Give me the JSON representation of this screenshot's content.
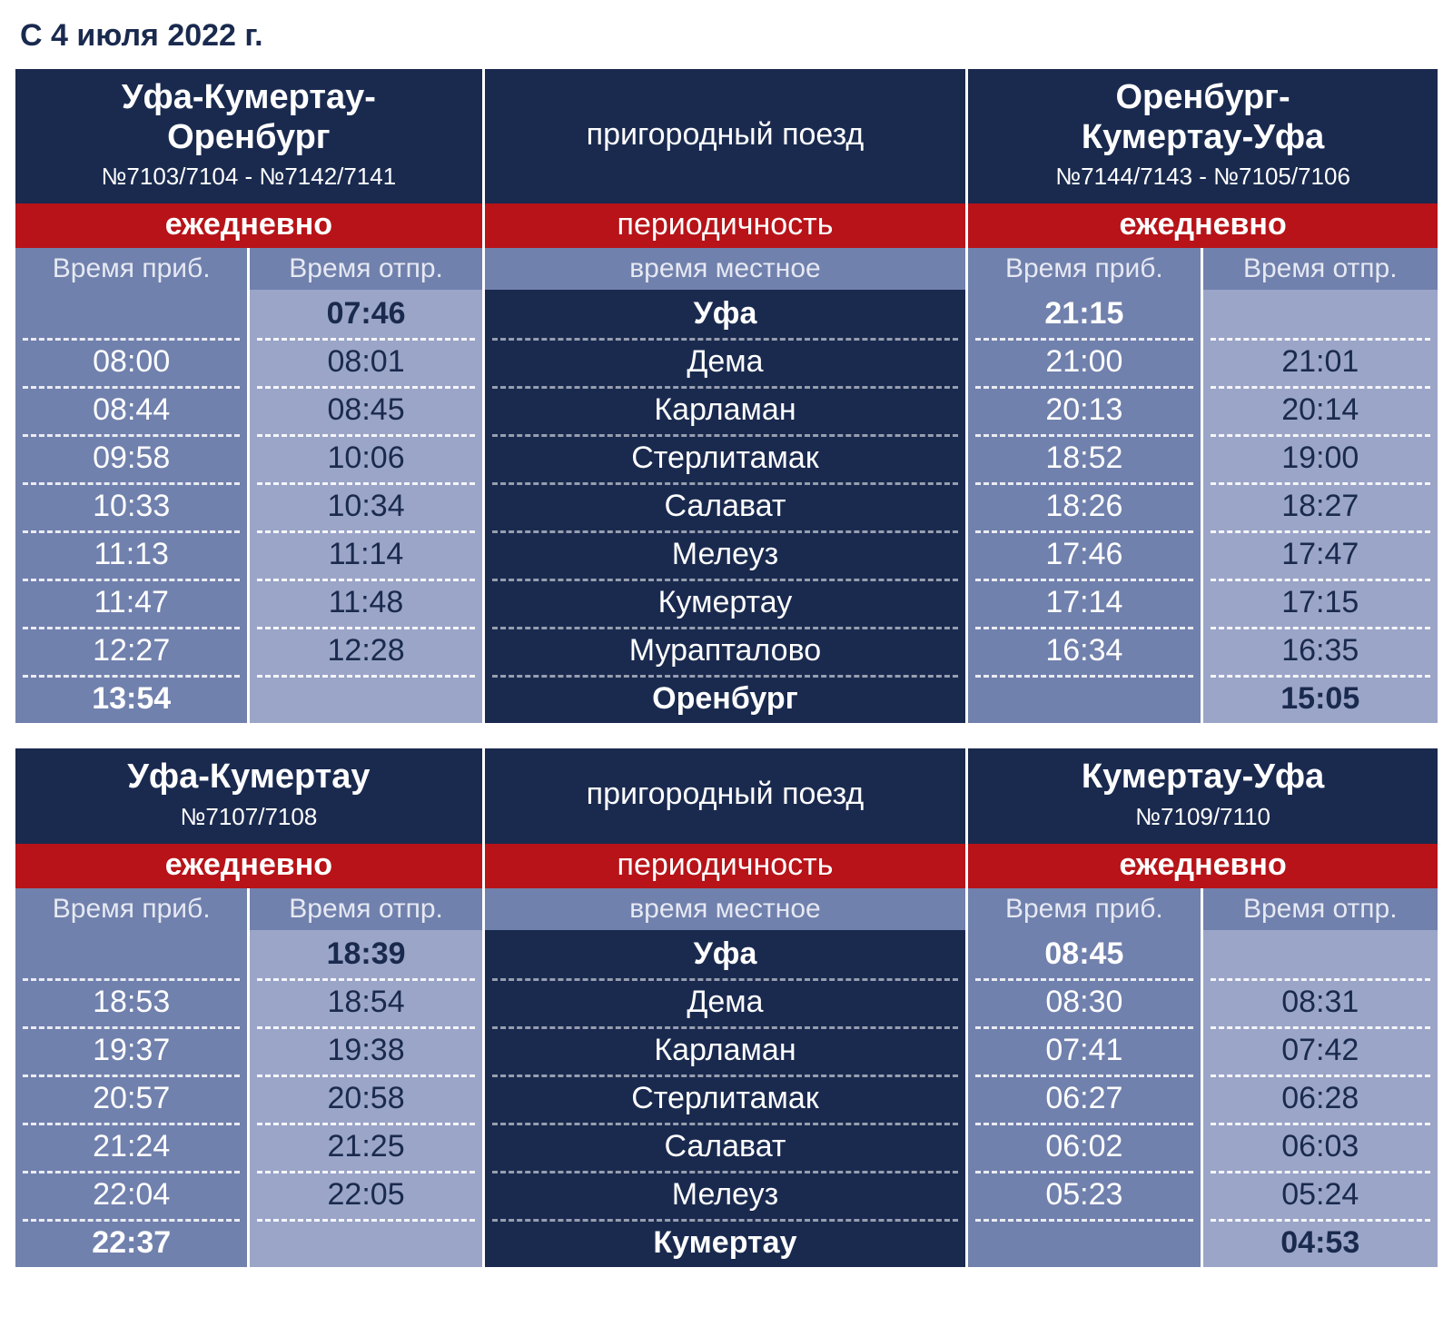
{
  "page_title": "С 4 июля 2022 г.",
  "colors": {
    "page_bg": "#ffffff",
    "dark_navy": "#1a2a4f",
    "red": "#b71318",
    "col_arr_bg": "#7181ad",
    "col_dep_bg": "#9ba5c7",
    "white": "#ffffff"
  },
  "labels": {
    "train_type": "пригородный поезд",
    "periodicity": "периодичность",
    "local_time": "время местное",
    "daily": "ежедневно",
    "arr": "Время приб.",
    "dep": "Время отпр."
  },
  "tables": [
    {
      "left": {
        "route": "Уфа-Кумертау-\nОренбург",
        "numbers": "№7103/7104 - №7142/7141"
      },
      "right": {
        "route": "Оренбург-\nКумертау-Уфа",
        "numbers": "№7144/7143 - №7105/7106"
      },
      "rows": [
        {
          "station": "Уфа",
          "bold": true,
          "l_arr": "",
          "l_dep": "07:46",
          "r_arr": "21:15",
          "r_dep": ""
        },
        {
          "station": "Дема",
          "bold": false,
          "l_arr": "08:00",
          "l_dep": "08:01",
          "r_arr": "21:00",
          "r_dep": "21:01"
        },
        {
          "station": "Карламан",
          "bold": false,
          "l_arr": "08:44",
          "l_dep": "08:45",
          "r_arr": "20:13",
          "r_dep": "20:14"
        },
        {
          "station": "Стерлитамак",
          "bold": false,
          "l_arr": "09:58",
          "l_dep": "10:06",
          "r_arr": "18:52",
          "r_dep": "19:00"
        },
        {
          "station": "Салават",
          "bold": false,
          "l_arr": "10:33",
          "l_dep": "10:34",
          "r_arr": "18:26",
          "r_dep": "18:27"
        },
        {
          "station": "Мелеуз",
          "bold": false,
          "l_arr": "11:13",
          "l_dep": "11:14",
          "r_arr": "17:46",
          "r_dep": "17:47"
        },
        {
          "station": "Кумертау",
          "bold": false,
          "l_arr": "11:47",
          "l_dep": "11:48",
          "r_arr": "17:14",
          "r_dep": "17:15"
        },
        {
          "station": "Мурапталово",
          "bold": false,
          "l_arr": "12:27",
          "l_dep": "12:28",
          "r_arr": "16:34",
          "r_dep": "16:35"
        },
        {
          "station": "Оренбург",
          "bold": true,
          "l_arr": "13:54",
          "l_dep": "",
          "r_arr": "",
          "r_dep": "15:05"
        }
      ]
    },
    {
      "left": {
        "route": "Уфа-Кумертау",
        "numbers": "№7107/7108"
      },
      "right": {
        "route": "Кумертау-Уфа",
        "numbers": "№7109/7110"
      },
      "rows": [
        {
          "station": "Уфа",
          "bold": true,
          "l_arr": "",
          "l_dep": "18:39",
          "r_arr": "08:45",
          "r_dep": ""
        },
        {
          "station": "Дема",
          "bold": false,
          "l_arr": "18:53",
          "l_dep": "18:54",
          "r_arr": "08:30",
          "r_dep": "08:31"
        },
        {
          "station": "Карламан",
          "bold": false,
          "l_arr": "19:37",
          "l_dep": "19:38",
          "r_arr": "07:41",
          "r_dep": "07:42"
        },
        {
          "station": "Стерлитамак",
          "bold": false,
          "l_arr": "20:57",
          "l_dep": "20:58",
          "r_arr": "06:27",
          "r_dep": "06:28"
        },
        {
          "station": "Салават",
          "bold": false,
          "l_arr": "21:24",
          "l_dep": "21:25",
          "r_arr": "06:02",
          "r_dep": "06:03"
        },
        {
          "station": "Мелеуз",
          "bold": false,
          "l_arr": "22:04",
          "l_dep": "22:05",
          "r_arr": "05:23",
          "r_dep": "05:24"
        },
        {
          "station": "Кумертау",
          "bold": true,
          "l_arr": "22:37",
          "l_dep": "",
          "r_arr": "",
          "r_dep": "04:53"
        }
      ]
    }
  ]
}
